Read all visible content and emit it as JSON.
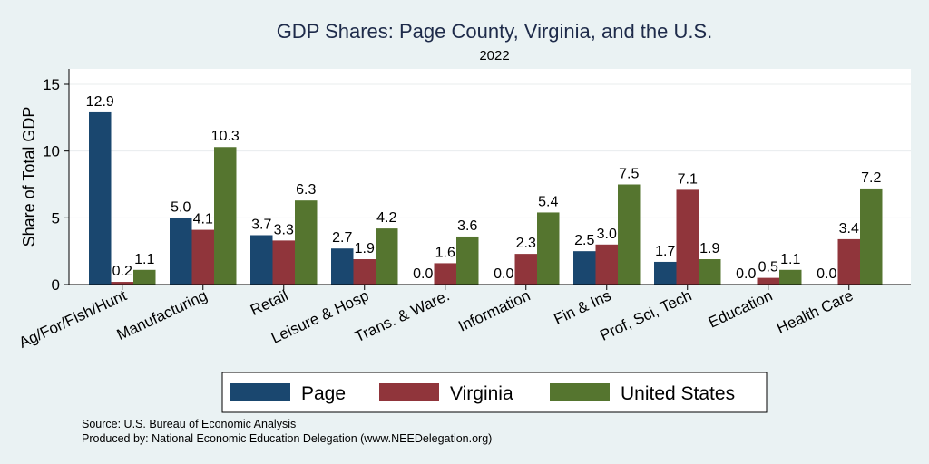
{
  "chart_data": {
    "type": "bar",
    "title": "GDP Shares: Page County, Virginia, and the U.S.",
    "subtitle": "2022",
    "xlabel": "",
    "ylabel": "Share of Total GDP",
    "ylim": [
      0,
      16
    ],
    "yticks": [
      0,
      5,
      10,
      15
    ],
    "grid": true,
    "legend_position": "bottom",
    "categories": [
      "Ag/For/Fish/Hunt",
      "Manufacturing",
      "Retail",
      "Leisure & Hosp",
      "Trans. & Ware.",
      "Information",
      "Fin & Ins",
      "Prof, Sci, Tech",
      "Education",
      "Health Care"
    ],
    "series": [
      {
        "name": "Page",
        "color": "#1a476f",
        "values": [
          12.9,
          5.0,
          3.7,
          2.7,
          0.0,
          0.0,
          2.5,
          1.7,
          0.0,
          0.0
        ]
      },
      {
        "name": "Virginia",
        "color": "#90353b",
        "values": [
          0.2,
          4.1,
          3.3,
          1.9,
          1.6,
          2.3,
          3.0,
          7.1,
          0.5,
          3.4
        ]
      },
      {
        "name": "United States",
        "color": "#55752f",
        "values": [
          1.1,
          10.3,
          6.3,
          4.2,
          3.6,
          5.4,
          7.5,
          1.9,
          1.1,
          7.2
        ]
      }
    ]
  },
  "notes": {
    "source": "Source: U.S. Bureau of Economic Analysis",
    "produced_by": "Produced by: National Economic Education Delegation (www.NEEDelegation.org)"
  }
}
